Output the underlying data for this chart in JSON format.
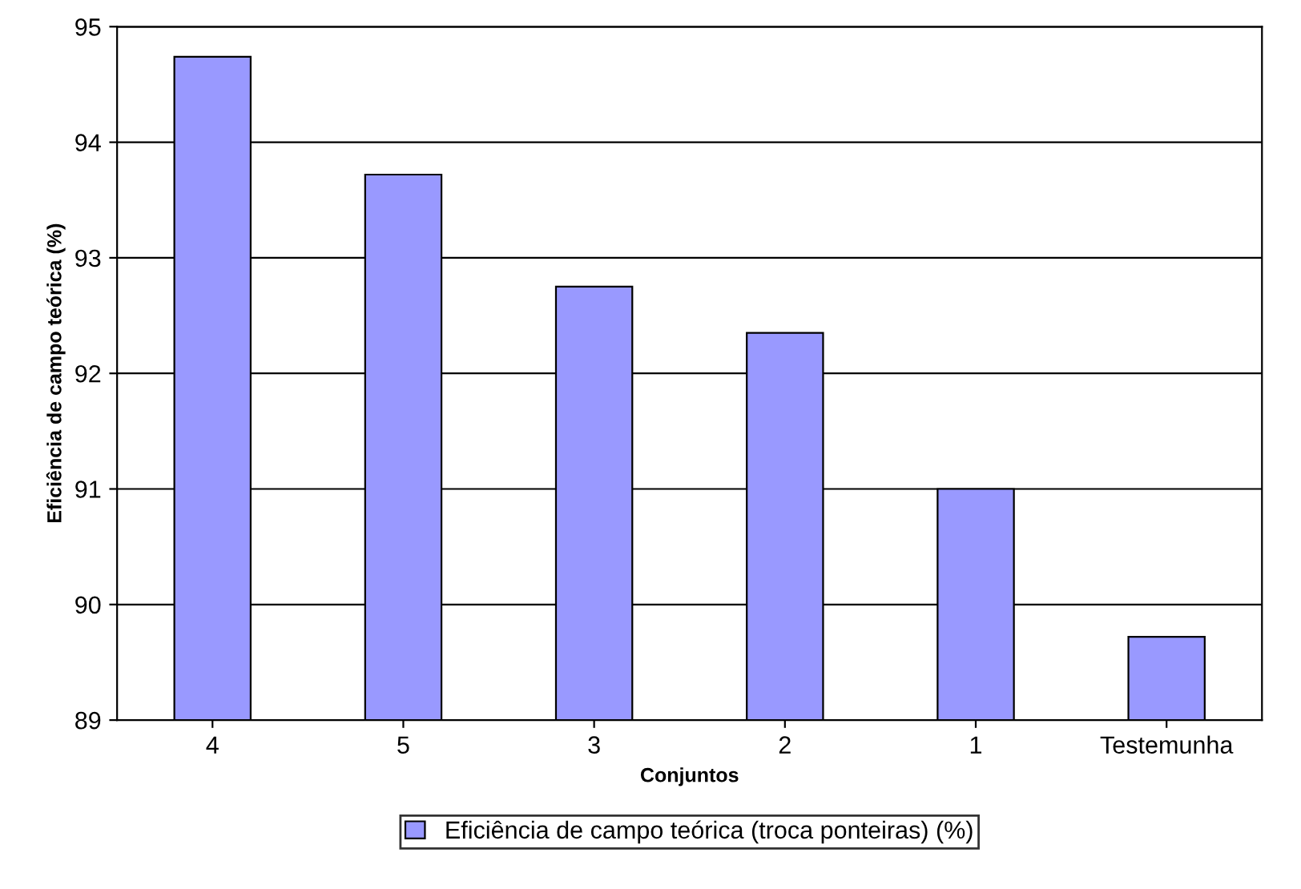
{
  "chart_data": {
    "type": "bar",
    "xlabel": "Conjuntos",
    "ylabel": "Eficiência de campo teórica (%)",
    "categories": [
      "4",
      "5",
      "3",
      "2",
      "1",
      "Testemunha"
    ],
    "series": [
      {
        "name": "Eficiência de campo teórica (troca ponteiras) (%)",
        "color": "#9999ff",
        "values": [
          94.74,
          93.72,
          92.75,
          92.35,
          91.0,
          89.72
        ]
      }
    ],
    "ylim": [
      89,
      95
    ],
    "yticks": [
      89,
      90,
      91,
      92,
      93,
      94,
      95
    ],
    "grid": "y",
    "legend": "bottom"
  }
}
